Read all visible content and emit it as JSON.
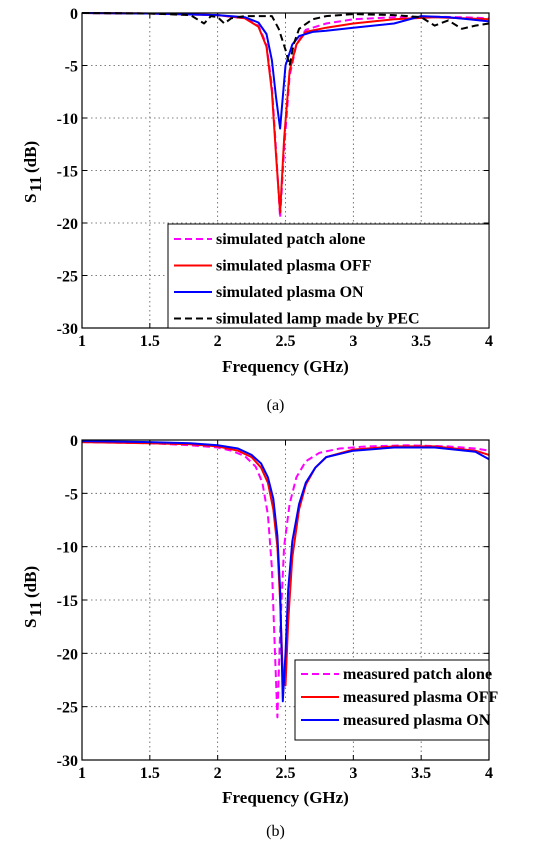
{
  "chart_data": [
    {
      "type": "line",
      "caption": "(a)",
      "xlabel": "Frequency (GHz)",
      "ylabel_main": "S",
      "ylabel_sub": "11",
      "ylabel_unit": "(dB)",
      "xlim": [
        1,
        4
      ],
      "ylim": [
        -30,
        0
      ],
      "xticks": [
        1,
        1.5,
        2,
        2.5,
        3,
        3.5,
        4
      ],
      "xticklabels": [
        "1",
        "1.5",
        "2",
        "2.5",
        "3",
        "3.5",
        "4"
      ],
      "yticks": [
        0,
        -5,
        -10,
        -15,
        -20,
        -25,
        -30
      ],
      "yticklabels": [
        "0",
        "-5",
        "-10",
        "-15",
        "-20",
        "-25",
        "-30"
      ],
      "grid": true,
      "legend_position": "bottom-right",
      "series": [
        {
          "name": "simulated patch alone",
          "color": "#ff00ff",
          "dash": "dashed",
          "x": [
            1.0,
            1.5,
            2.0,
            2.2,
            2.3,
            2.36,
            2.4,
            2.43,
            2.46,
            2.49,
            2.53,
            2.58,
            2.65,
            2.8,
            3.0,
            3.3,
            3.6,
            3.8,
            4.0
          ],
          "y": [
            0,
            -0.05,
            -0.2,
            -0.5,
            -1.2,
            -3.0,
            -7.0,
            -13.0,
            -19.5,
            -13.0,
            -6.0,
            -3.0,
            -1.6,
            -1.0,
            -0.6,
            -0.4,
            -0.35,
            -0.4,
            -0.5
          ]
        },
        {
          "name": "simulated plasma OFF",
          "color": "#ff0000",
          "dash": "solid",
          "x": [
            1.0,
            1.5,
            2.0,
            2.2,
            2.3,
            2.36,
            2.4,
            2.43,
            2.46,
            2.49,
            2.53,
            2.58,
            2.65,
            2.8,
            3.0,
            3.3,
            3.6,
            3.8,
            4.0
          ],
          "y": [
            0,
            -0.05,
            -0.2,
            -0.5,
            -1.3,
            -3.2,
            -7.5,
            -13.5,
            -19.0,
            -12.0,
            -5.5,
            -3.0,
            -1.8,
            -1.4,
            -1.0,
            -0.6,
            -0.4,
            -0.5,
            -0.6
          ]
        },
        {
          "name": "simulated plasma ON",
          "color": "#0000ff",
          "dash": "solid",
          "x": [
            1.0,
            1.5,
            2.0,
            2.2,
            2.3,
            2.36,
            2.4,
            2.43,
            2.46,
            2.5,
            2.55,
            2.6,
            2.7,
            2.8,
            3.0,
            3.3,
            3.5,
            3.7,
            3.85,
            4.0
          ],
          "y": [
            0,
            -0.05,
            -0.2,
            -0.4,
            -0.9,
            -2.0,
            -4.5,
            -8.0,
            -11.0,
            -5.0,
            -3.0,
            -2.2,
            -1.8,
            -1.7,
            -1.4,
            -1.0,
            -0.3,
            -0.4,
            -0.6,
            -0.8
          ]
        },
        {
          "name": "simulated lamp made by PEC",
          "color": "#000000",
          "dash": "dashed",
          "x": [
            1.0,
            1.5,
            1.8,
            1.9,
            1.95,
            2.0,
            2.05,
            2.1,
            2.2,
            2.3,
            2.4,
            2.45,
            2.5,
            2.53,
            2.56,
            2.6,
            2.7,
            2.8,
            3.0,
            3.3,
            3.5,
            3.6,
            3.7,
            3.8,
            3.9,
            4.0
          ],
          "y": [
            0,
            -0.05,
            -0.2,
            -1.0,
            -0.3,
            -0.4,
            -1.0,
            -0.5,
            -0.3,
            -0.3,
            -0.3,
            -1.5,
            -3.5,
            -5.0,
            -3.0,
            -1.5,
            -0.6,
            -0.3,
            -0.1,
            -0.2,
            -0.4,
            -1.2,
            -0.7,
            -1.5,
            -1.2,
            -1.0
          ]
        }
      ]
    },
    {
      "type": "line",
      "caption": "(b)",
      "xlabel": "Frequency (GHz)",
      "ylabel_main": "S",
      "ylabel_sub": "11",
      "ylabel_unit": "(dB)",
      "xlim": [
        1,
        4
      ],
      "ylim": [
        -30,
        0
      ],
      "xticks": [
        1,
        1.5,
        2,
        2.5,
        3,
        3.5,
        4
      ],
      "xticklabels": [
        "1",
        "1.5",
        "2",
        "2.5",
        "3",
        "3.5",
        "4"
      ],
      "yticks": [
        0,
        -5,
        -10,
        -15,
        -20,
        -25,
        -30
      ],
      "yticklabels": [
        "0",
        "-5",
        "-10",
        "-15",
        "-20",
        "-25",
        "-30"
      ],
      "grid": true,
      "legend_position": "bottom-right",
      "series": [
        {
          "name": "measured patch alone",
          "color": "#ff00ff",
          "dash": "dashed",
          "x": [
            1.0,
            1.5,
            1.8,
            2.0,
            2.1,
            2.2,
            2.28,
            2.33,
            2.37,
            2.4,
            2.42,
            2.44,
            2.46,
            2.49,
            2.53,
            2.58,
            2.65,
            2.75,
            2.9,
            3.1,
            3.4,
            3.7,
            3.9,
            4.0
          ],
          "y": [
            -0.2,
            -0.3,
            -0.5,
            -0.7,
            -1.0,
            -1.5,
            -2.5,
            -4.0,
            -7.0,
            -12.0,
            -19.0,
            -26.0,
            -18.0,
            -10.0,
            -6.0,
            -3.5,
            -2.0,
            -1.2,
            -0.8,
            -0.6,
            -0.5,
            -0.6,
            -0.8,
            -1.0
          ]
        },
        {
          "name": "measured plasma OFF",
          "color": "#ff0000",
          "dash": "solid",
          "x": [
            1.0,
            1.5,
            1.8,
            2.0,
            2.15,
            2.25,
            2.32,
            2.37,
            2.41,
            2.44,
            2.46,
            2.48,
            2.5,
            2.52,
            2.55,
            2.6,
            2.65,
            2.72,
            2.8,
            3.0,
            3.3,
            3.6,
            3.9,
            4.0
          ],
          "y": [
            -0.2,
            -0.3,
            -0.4,
            -0.6,
            -1.0,
            -1.6,
            -2.6,
            -4.0,
            -6.5,
            -10.0,
            -15.0,
            -22.0,
            -23.0,
            -17.0,
            -11.0,
            -6.5,
            -4.2,
            -2.6,
            -1.6,
            -0.9,
            -0.6,
            -0.6,
            -1.0,
            -1.4
          ]
        },
        {
          "name": "measured plasma ON",
          "color": "#0000ff",
          "dash": "solid",
          "x": [
            1.0,
            1.5,
            1.8,
            2.0,
            2.15,
            2.25,
            2.32,
            2.37,
            2.41,
            2.44,
            2.46,
            2.48,
            2.5,
            2.52,
            2.55,
            2.6,
            2.65,
            2.72,
            2.8,
            3.0,
            3.3,
            3.6,
            3.9,
            4.0
          ],
          "y": [
            -0.1,
            -0.2,
            -0.3,
            -0.5,
            -0.8,
            -1.4,
            -2.2,
            -3.5,
            -5.5,
            -9.0,
            -14.0,
            -24.5,
            -20.0,
            -14.0,
            -9.5,
            -6.0,
            -4.0,
            -2.6,
            -1.6,
            -1.0,
            -0.7,
            -0.7,
            -1.1,
            -1.8
          ]
        }
      ]
    }
  ]
}
